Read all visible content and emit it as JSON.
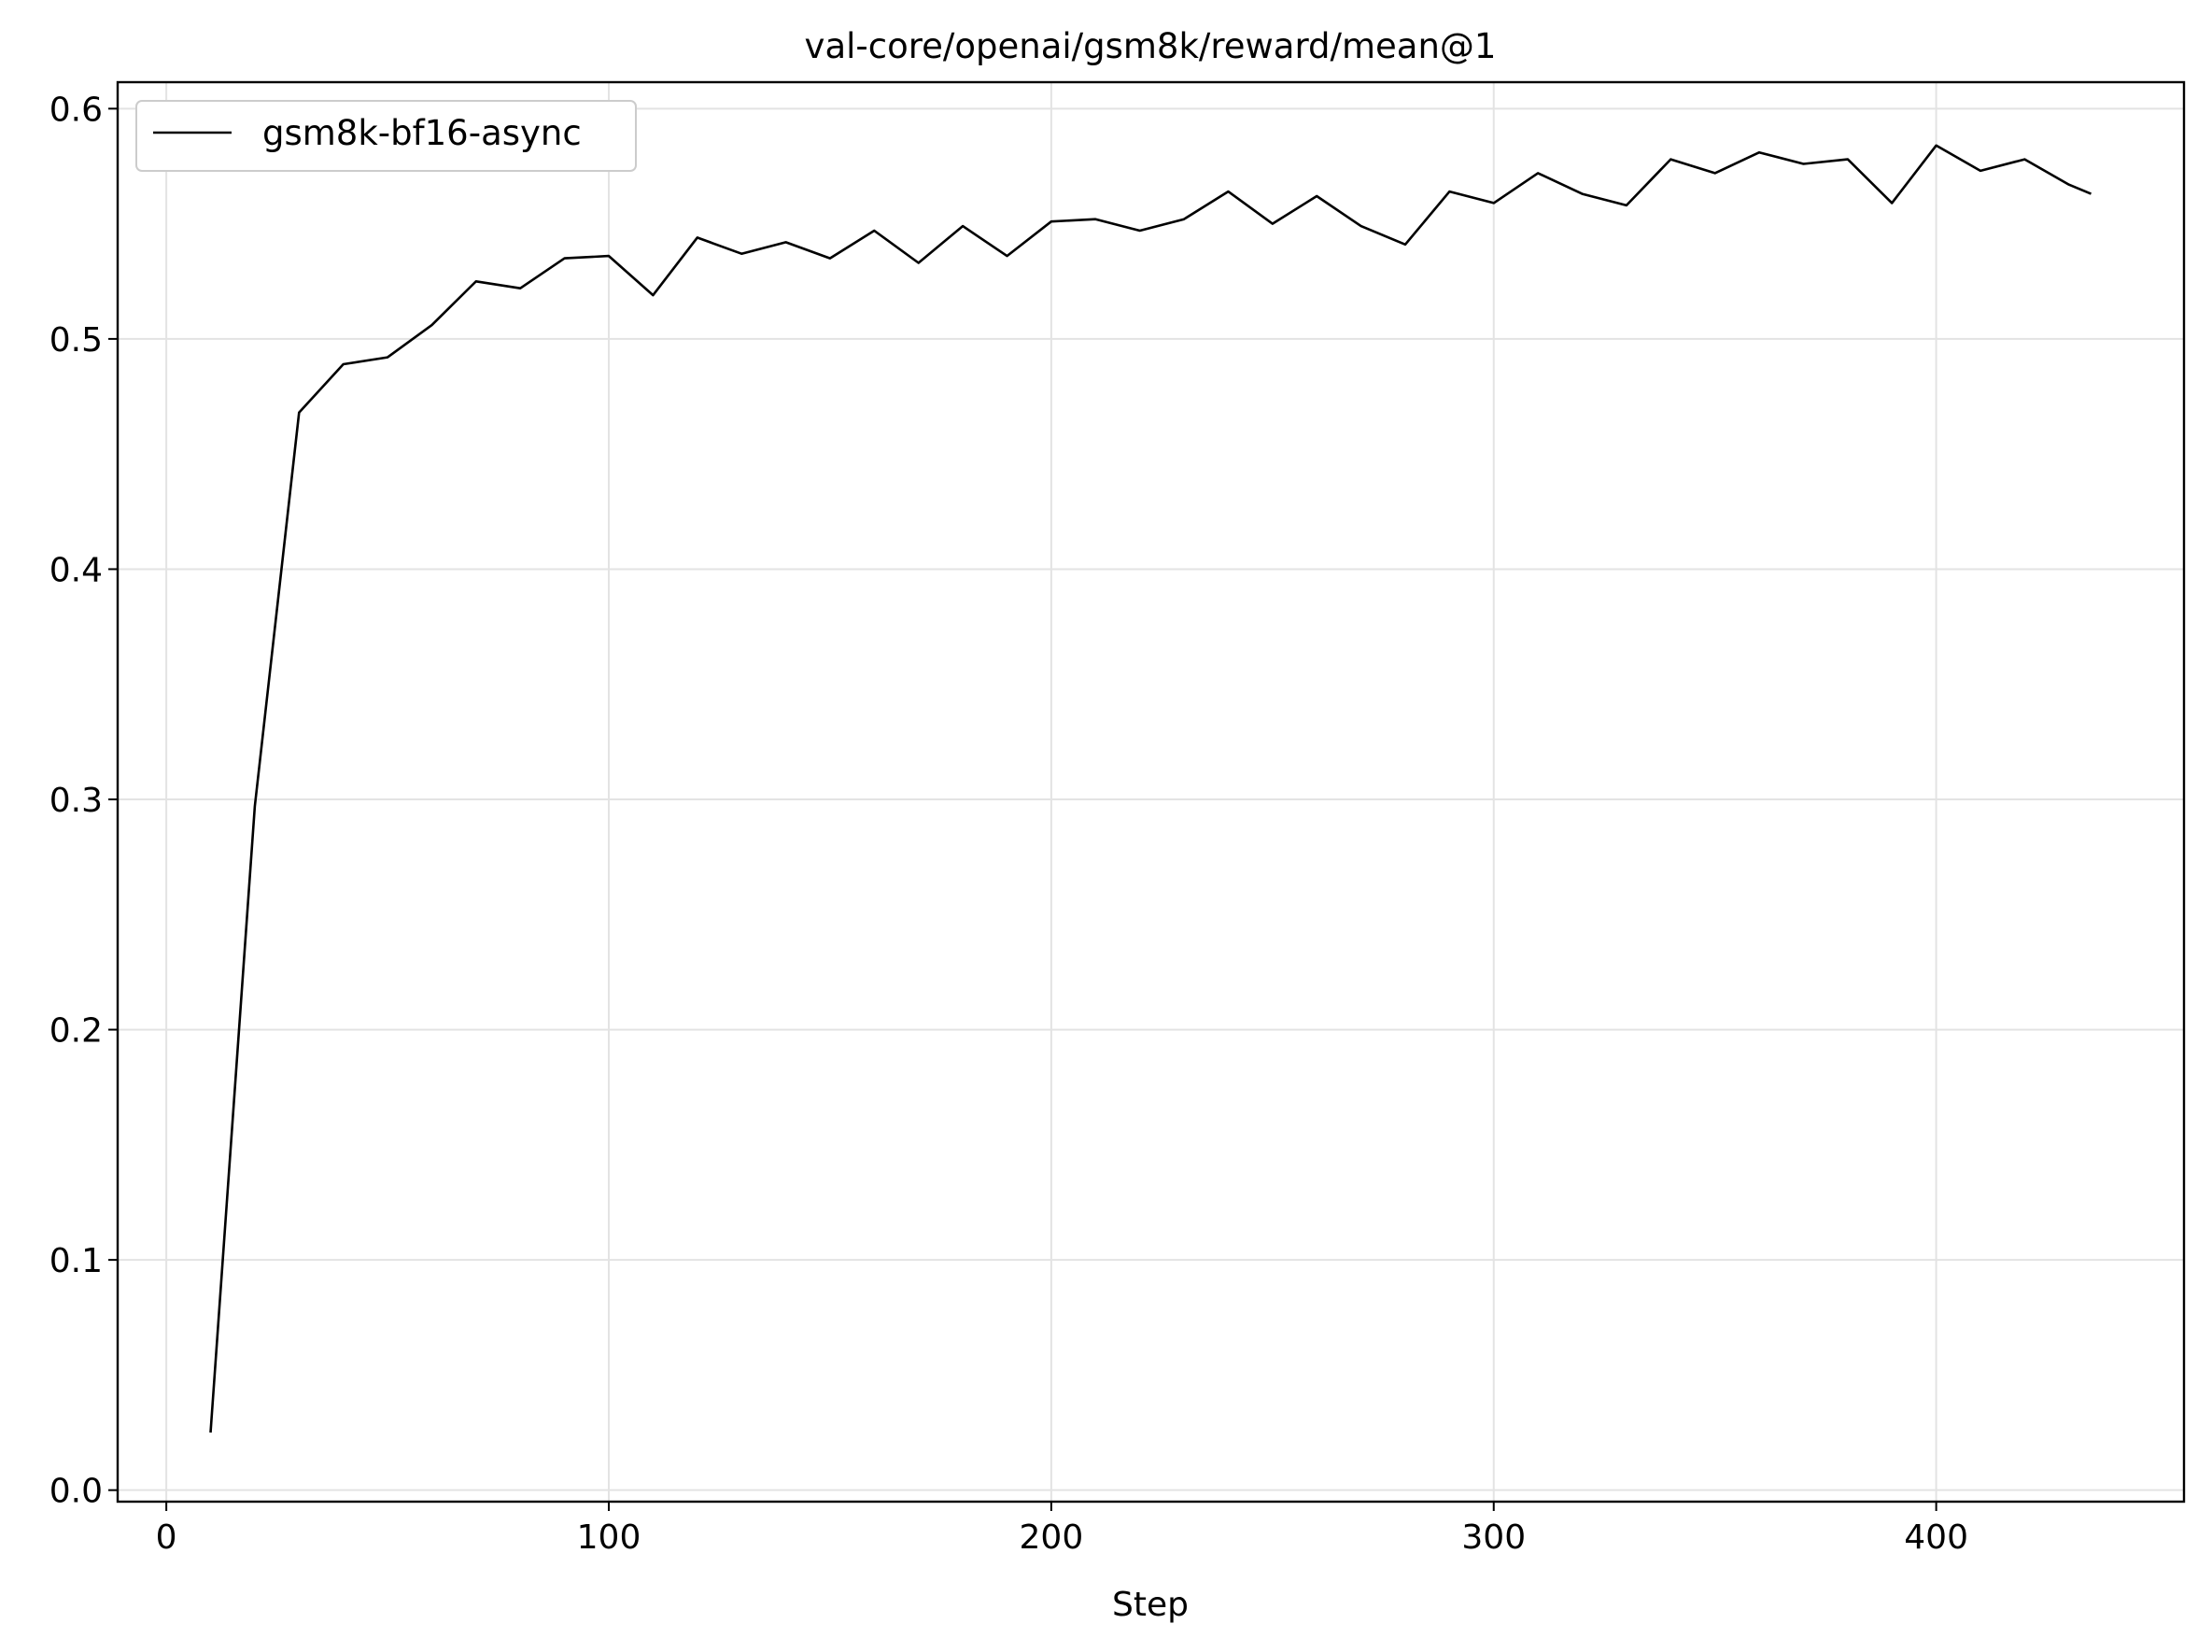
{
  "chart_data": {
    "type": "line",
    "title": "val-core/openai/gsm8k/reward/mean@1",
    "xlabel": "Step",
    "ylabel": "",
    "xlim": [
      -11,
      456
    ],
    "ylim": [
      -0.005,
      0.6115
    ],
    "xticks": [
      0,
      100,
      200,
      300,
      400
    ],
    "yticks": [
      0.0,
      0.1,
      0.2,
      0.3,
      0.4,
      0.5,
      0.6
    ],
    "xtick_labels": [
      "0",
      "100",
      "200",
      "300",
      "400"
    ],
    "ytick_labels": [
      "0.0",
      "0.1",
      "0.2",
      "0.3",
      "0.4",
      "0.5",
      "0.6"
    ],
    "grid": true,
    "legend_position": "top-left",
    "series": [
      {
        "name": "gsm8k-bf16-async",
        "color": "#000000",
        "x": [
          10,
          20,
          30,
          40,
          50,
          60,
          70,
          80,
          90,
          100,
          110,
          120,
          130,
          140,
          150,
          160,
          170,
          180,
          190,
          200,
          210,
          220,
          230,
          240,
          250,
          260,
          270,
          280,
          290,
          300,
          310,
          320,
          330,
          340,
          350,
          360,
          370,
          380,
          390,
          400,
          410,
          420,
          430,
          435
        ],
        "y": [
          0.025,
          0.297,
          0.468,
          0.489,
          0.492,
          0.506,
          0.525,
          0.522,
          0.535,
          0.536,
          0.519,
          0.544,
          0.537,
          0.542,
          0.535,
          0.547,
          0.533,
          0.549,
          0.536,
          0.551,
          0.552,
          0.547,
          0.552,
          0.564,
          0.55,
          0.562,
          0.549,
          0.541,
          0.564,
          0.559,
          0.572,
          0.563,
          0.558,
          0.578,
          0.572,
          0.581,
          0.576,
          0.578,
          0.559,
          0.584,
          0.573,
          0.578,
          0.567,
          0.563
        ]
      }
    ]
  }
}
